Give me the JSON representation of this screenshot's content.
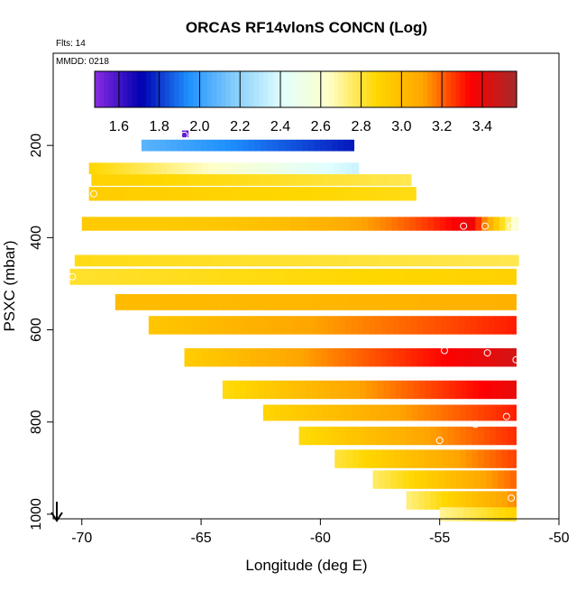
{
  "chart_data": {
    "type": "heatmap",
    "title": "ORCAS RF14vlonS CONCN (Log)",
    "note_flights": "Flts: 14",
    "note_date": "MMDD: 0218",
    "xlabel": "Longitude (deg E)",
    "ylabel": "PSXC (mbar)",
    "xlim": [
      -71.2,
      -50
    ],
    "ylim": [
      1010,
      0
    ],
    "xticks": [
      -70,
      -65,
      -60,
      -55,
      -50
    ],
    "yticks": [
      200,
      400,
      600,
      800,
      1000
    ],
    "colorbar": {
      "min": 1.48,
      "max": 3.57,
      "ticks": [
        "1.6",
        "1.8",
        "2.0",
        "2.2",
        "2.4",
        "2.6",
        "2.8",
        "3.0",
        "3.2",
        "3.4"
      ],
      "colors": [
        "#8a2be2",
        "#0000b0",
        "#1e90ff",
        "#87cefa",
        "#e0ffff",
        "#ffffc8",
        "#ffd700",
        "#ffa500",
        "#ff0000",
        "#a52a2a"
      ]
    },
    "rows": [
      {
        "p": 175,
        "h": 15,
        "x0": -65.8,
        "x1": -65.55,
        "v0": 1.55,
        "v1": 1.55
      },
      {
        "p": 200,
        "h": 25,
        "x0": -67.5,
        "x1": -58.6,
        "v0": 2.08,
        "v1": 1.75
      },
      {
        "p": 250,
        "h": 25,
        "x0": -69.7,
        "x1": -58.4,
        "v0": 2.88,
        "v1": 2.35
      },
      {
        "p": 275,
        "h": 25,
        "x0": -69.6,
        "x1": -56.2,
        "v0": 2.9,
        "v1": 2.78
      },
      {
        "p": 305,
        "h": 30,
        "x0": -69.7,
        "x1": -56.0,
        "v0": 2.92,
        "v1": 2.85
      },
      {
        "p": 370,
        "h": 30,
        "x0": -70.0,
        "x1": -51.7,
        "v0": 2.93,
        "v1": 2.55,
        "peak": -53.7,
        "vpeak": 3.4
      },
      {
        "p": 450,
        "h": 25,
        "x0": -70.3,
        "x1": -51.7,
        "v0": 2.85,
        "v1": 2.78
      },
      {
        "p": 485,
        "h": 35,
        "x0": -70.5,
        "x1": -51.8,
        "v0": 2.82,
        "v1": 2.9
      },
      {
        "p": 540,
        "h": 35,
        "x0": -68.6,
        "x1": -51.8,
        "v0": 3.0,
        "v1": 3.05
      },
      {
        "p": 590,
        "h": 40,
        "x0": -67.2,
        "x1": -51.8,
        "v0": 2.95,
        "v1": 3.3
      },
      {
        "p": 660,
        "h": 40,
        "x0": -65.7,
        "x1": -51.8,
        "v0": 2.92,
        "v1": 3.45
      },
      {
        "p": 730,
        "h": 40,
        "x0": -64.1,
        "x1": -51.8,
        "v0": 2.85,
        "v1": 3.4
      },
      {
        "p": 780,
        "h": 35,
        "x0": -62.4,
        "x1": -51.8,
        "v0": 2.88,
        "v1": 3.3
      },
      {
        "p": 830,
        "h": 40,
        "x0": -60.9,
        "x1": -51.8,
        "v0": 2.85,
        "v1": 3.28
      },
      {
        "p": 880,
        "h": 40,
        "x0": -59.4,
        "x1": -51.8,
        "v0": 2.8,
        "v1": 3.25
      },
      {
        "p": 925,
        "h": 40,
        "x0": -57.8,
        "x1": -51.8,
        "v0": 2.75,
        "v1": 3.2
      },
      {
        "p": 970,
        "h": 40,
        "x0": -56.4,
        "x1": -51.8,
        "v0": 2.72,
        "v1": 3.15
      },
      {
        "p": 1000,
        "h": 30,
        "x0": -55.0,
        "x1": -51.8,
        "v0": 2.7,
        "v1": 2.9
      }
    ],
    "points": [
      {
        "x": -65.7,
        "y": 178
      },
      {
        "x": -69.5,
        "y": 305
      },
      {
        "x": -54.0,
        "y": 375
      },
      {
        "x": -53.1,
        "y": 375
      },
      {
        "x": -52.0,
        "y": 375
      },
      {
        "x": -51.6,
        "y": 375
      },
      {
        "x": -70.4,
        "y": 485
      },
      {
        "x": -54.5,
        "y": 625
      },
      {
        "x": -54.8,
        "y": 645
      },
      {
        "x": -53.0,
        "y": 650
      },
      {
        "x": -51.8,
        "y": 665
      },
      {
        "x": -52.2,
        "y": 788
      },
      {
        "x": -53.5,
        "y": 805
      },
      {
        "x": -55.0,
        "y": 840
      },
      {
        "x": -52.0,
        "y": 965
      }
    ]
  }
}
